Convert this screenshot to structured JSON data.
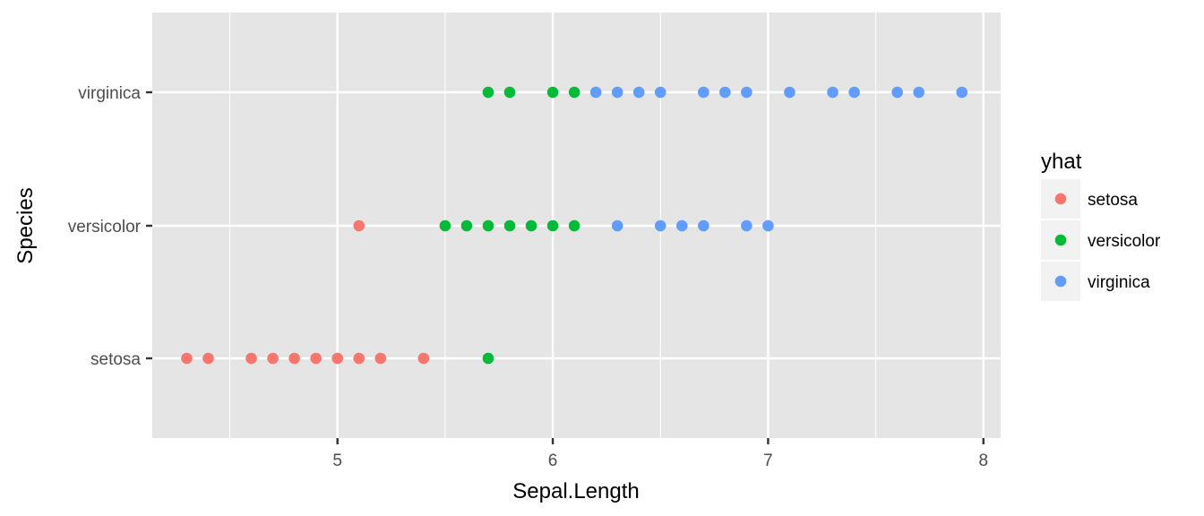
{
  "chart_data": {
    "type": "scatter",
    "title": "",
    "xlabel": "Sepal.Length",
    "ylabel": "Species",
    "xlim": [
      4.14,
      8.08
    ],
    "x_ticks": [
      5,
      6,
      7,
      8
    ],
    "x_minor_ticks": [
      4.5,
      5.5,
      6.5,
      7.5
    ],
    "x_tick_labels": [
      "5",
      "6",
      "7",
      "8"
    ],
    "categories": [
      "setosa",
      "versicolor",
      "virginica"
    ],
    "grid": true,
    "legend": {
      "title": "yhat",
      "position": "right",
      "entries": [
        "setosa",
        "versicolor",
        "virginica"
      ]
    },
    "series": [
      {
        "name": "setosa",
        "color": "#F8766D",
        "points": [
          {
            "x": 4.3,
            "y": "setosa"
          },
          {
            "x": 4.4,
            "y": "setosa"
          },
          {
            "x": 4.6,
            "y": "setosa"
          },
          {
            "x": 4.7,
            "y": "setosa"
          },
          {
            "x": 4.8,
            "y": "setosa"
          },
          {
            "x": 4.9,
            "y": "setosa"
          },
          {
            "x": 5.0,
            "y": "setosa"
          },
          {
            "x": 5.1,
            "y": "setosa"
          },
          {
            "x": 5.2,
            "y": "setosa"
          },
          {
            "x": 5.4,
            "y": "setosa"
          },
          {
            "x": 5.1,
            "y": "versicolor"
          }
        ]
      },
      {
        "name": "versicolor",
        "color": "#00BA38",
        "points": [
          {
            "x": 5.7,
            "y": "setosa"
          },
          {
            "x": 5.5,
            "y": "versicolor"
          },
          {
            "x": 5.6,
            "y": "versicolor"
          },
          {
            "x": 5.7,
            "y": "versicolor"
          },
          {
            "x": 5.8,
            "y": "versicolor"
          },
          {
            "x": 5.9,
            "y": "versicolor"
          },
          {
            "x": 6.0,
            "y": "versicolor"
          },
          {
            "x": 6.1,
            "y": "versicolor"
          },
          {
            "x": 5.7,
            "y": "virginica"
          },
          {
            "x": 5.8,
            "y": "virginica"
          },
          {
            "x": 6.0,
            "y": "virginica"
          },
          {
            "x": 6.1,
            "y": "virginica"
          }
        ]
      },
      {
        "name": "virginica",
        "color": "#619CFF",
        "points": [
          {
            "x": 6.3,
            "y": "versicolor"
          },
          {
            "x": 6.5,
            "y": "versicolor"
          },
          {
            "x": 6.6,
            "y": "versicolor"
          },
          {
            "x": 6.7,
            "y": "versicolor"
          },
          {
            "x": 6.9,
            "y": "versicolor"
          },
          {
            "x": 7.0,
            "y": "versicolor"
          },
          {
            "x": 6.2,
            "y": "virginica"
          },
          {
            "x": 6.3,
            "y": "virginica"
          },
          {
            "x": 6.4,
            "y": "virginica"
          },
          {
            "x": 6.5,
            "y": "virginica"
          },
          {
            "x": 6.7,
            "y": "virginica"
          },
          {
            "x": 6.8,
            "y": "virginica"
          },
          {
            "x": 6.9,
            "y": "virginica"
          },
          {
            "x": 7.1,
            "y": "virginica"
          },
          {
            "x": 7.3,
            "y": "virginica"
          },
          {
            "x": 7.4,
            "y": "virginica"
          },
          {
            "x": 7.6,
            "y": "virginica"
          },
          {
            "x": 7.7,
            "y": "virginica"
          },
          {
            "x": 7.9,
            "y": "virginica"
          }
        ]
      }
    ]
  }
}
